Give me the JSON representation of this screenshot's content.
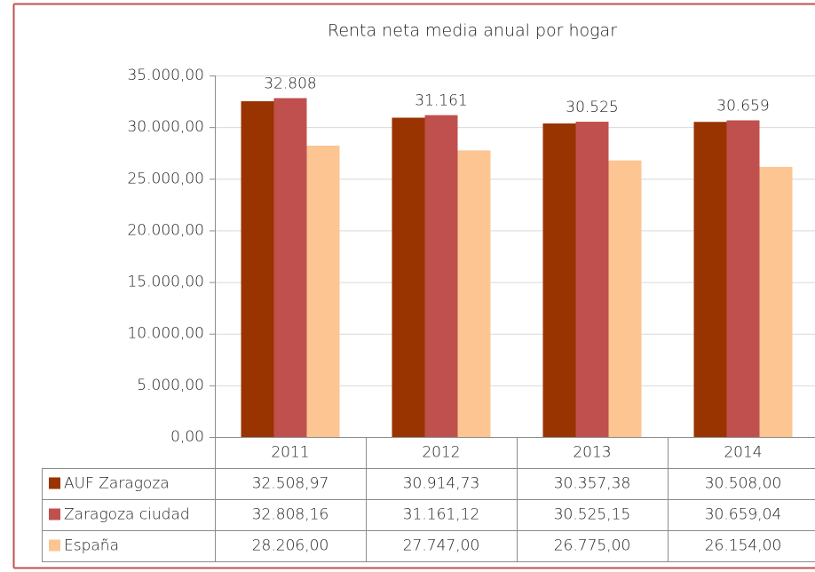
{
  "chart_data": {
    "type": "bar",
    "title": "Renta neta media anual por hogar",
    "categories": [
      "2011",
      "2012",
      "2013",
      "2014"
    ],
    "series": [
      {
        "name": "AUF Zaragoza",
        "color": "#993300",
        "values": [
          32508.97,
          30914.73,
          30357.38,
          30508.0
        ],
        "table_labels": [
          "32.508,97",
          "30.914,73",
          "30.357,38",
          "30.508,00"
        ]
      },
      {
        "name": "Zaragoza ciudad",
        "color": "#c0504d",
        "values": [
          32808.16,
          31161.12,
          30525.15,
          30659.04
        ],
        "table_labels": [
          "32.808,16",
          "31.161,12",
          "30.525,15",
          "30.659,04"
        ],
        "value_labels": [
          "32.808",
          "31.161",
          "30.525",
          "30.659"
        ]
      },
      {
        "name": "España",
        "color": "#fcc592",
        "values": [
          28206.0,
          27747.0,
          26775.0,
          26154.0
        ],
        "table_labels": [
          "28.206,00",
          "27.747,00",
          "26.775,00",
          "26.154,00"
        ]
      }
    ],
    "ylim": [
      0,
      35000
    ],
    "yticks": [
      {
        "value": 0,
        "label": "0,00"
      },
      {
        "value": 5000,
        "label": "5.000,00"
      },
      {
        "value": 10000,
        "label": "10.000,00"
      },
      {
        "value": 15000,
        "label": "15.000,00"
      },
      {
        "value": 20000,
        "label": "20.000,00"
      },
      {
        "value": 25000,
        "label": "25.000,00"
      },
      {
        "value": 30000,
        "label": "30.000,00"
      },
      {
        "value": 35000,
        "label": "35.000,00"
      }
    ],
    "grid": true
  }
}
